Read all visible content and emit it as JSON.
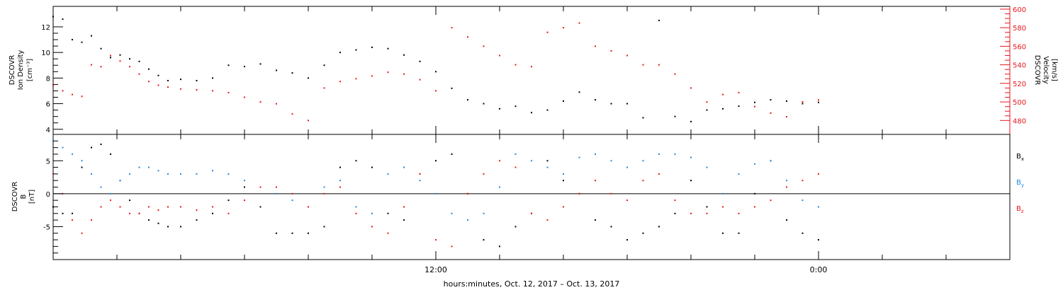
{
  "chart_data": [
    {
      "type": "scatter",
      "panel": "top",
      "ylabel_left": [
        "DSCOVR",
        "Ion Density",
        "[cm⁻³]"
      ],
      "ylabel_right": [
        "DSCOVR",
        "Velocity",
        "[km/s]"
      ],
      "yticks_left": [
        4,
        6,
        8,
        10,
        12
      ],
      "yticks_right": [
        480,
        500,
        520,
        540,
        560,
        580,
        600
      ],
      "ylim_left": [
        3.6,
        13.6
      ],
      "ylim_right": [
        465,
        603
      ],
      "series": [
        {
          "name": "Ion Density",
          "axis": "left",
          "color": "#000000",
          "x": [
            0,
            0.3,
            0.6,
            0.9,
            1.2,
            1.5,
            1.8,
            2.1,
            2.4,
            2.7,
            3.0,
            3.3,
            3.6,
            4.0,
            4.5,
            5.0,
            5.5,
            6.0,
            6.5,
            7.0,
            7.5,
            8.0,
            8.5,
            9.0,
            9.5,
            10.0,
            10.5,
            11.0,
            11.5,
            12.0,
            12.5,
            13.0,
            13.5,
            14.0,
            14.5,
            15.0,
            15.5,
            16.0,
            16.5,
            17.0,
            17.5,
            18.0,
            18.5,
            19.0,
            19.5,
            20.0,
            20.5,
            21.0,
            21.5,
            22.0,
            22.5,
            23.0,
            23.5,
            24.0
          ],
          "y": [
            12.8,
            12.6,
            11.0,
            10.8,
            11.3,
            10.3,
            9.6,
            9.8,
            9.5,
            9.3,
            8.7,
            8.2,
            7.8,
            7.9,
            7.8,
            8.0,
            9.0,
            8.9,
            9.1,
            8.6,
            8.4,
            8.0,
            9.0,
            10.0,
            10.2,
            10.4,
            10.3,
            9.8,
            9.3,
            8.5,
            7.2,
            6.3,
            6.0,
            5.6,
            5.8,
            5.3,
            5.5,
            6.2,
            6.9,
            6.3,
            6.0,
            6.0,
            4.9,
            12.5,
            5.0,
            4.6,
            5.5,
            5.6,
            5.8,
            6.1,
            6.3,
            6.2,
            6.0,
            6.1
          ]
        },
        {
          "name": "Velocity",
          "axis": "right",
          "color": "#e8161b",
          "x": [
            0,
            0.3,
            0.6,
            0.9,
            1.2,
            1.5,
            1.8,
            2.1,
            2.4,
            2.7,
            3.0,
            3.3,
            3.6,
            4.0,
            4.5,
            5.0,
            5.5,
            6.0,
            6.5,
            7.0,
            7.5,
            8.0,
            8.5,
            9.0,
            9.5,
            10.0,
            10.5,
            11.0,
            11.5,
            12.0,
            12.5,
            13.0,
            13.5,
            14.0,
            14.5,
            15.0,
            15.5,
            16.0,
            16.5,
            17.0,
            17.5,
            18.0,
            18.5,
            19.0,
            19.5,
            20.0,
            20.5,
            21.0,
            21.5,
            22.0,
            22.5,
            23.0,
            23.5,
            24.0
          ],
          "y": [
            518,
            512,
            508,
            506,
            540,
            538,
            550,
            544,
            538,
            530,
            522,
            518,
            516,
            514,
            513,
            512,
            510,
            505,
            500,
            498,
            487,
            480,
            515,
            522,
            525,
            528,
            532,
            530,
            524,
            512,
            580,
            570,
            560,
            550,
            540,
            538,
            575,
            580,
            585,
            560,
            555,
            550,
            540,
            540,
            530,
            515,
            500,
            508,
            510,
            495,
            488,
            484,
            500,
            502
          ]
        }
      ]
    },
    {
      "type": "scatter",
      "panel": "bottom",
      "ylabel": [
        "DSCOVR",
        "B",
        "[nT]"
      ],
      "yticks": [
        -5,
        0,
        5
      ],
      "ylim": [
        -10,
        9
      ],
      "zero_line": true,
      "series": [
        {
          "name": "Bx",
          "label_main": "B",
          "label_sub": "x",
          "color": "#000000",
          "x": [
            0,
            0.3,
            0.6,
            0.9,
            1.2,
            1.5,
            1.8,
            2.1,
            2.4,
            2.7,
            3.0,
            3.3,
            3.6,
            4.0,
            4.5,
            5.0,
            5.5,
            6.0,
            6.5,
            7.0,
            7.5,
            8.0,
            8.5,
            9.0,
            9.5,
            10.0,
            10.5,
            11.0,
            11.5,
            12.0,
            12.5,
            13.0,
            13.5,
            14.0,
            14.5,
            15.0,
            15.5,
            16.0,
            16.5,
            17.0,
            17.5,
            18.0,
            18.5,
            19.0,
            19.5,
            20.0,
            20.5,
            21.0,
            21.5,
            22.0,
            22.5,
            23.0,
            23.5,
            24.0
          ],
          "y": [
            -2,
            -3,
            -3,
            4,
            7,
            7.5,
            6,
            2,
            -1,
            -3,
            -4,
            -4.5,
            -5,
            -5,
            -4,
            -3,
            -1,
            1,
            -2,
            -6,
            -6,
            -6,
            -5,
            4,
            5,
            4,
            -3,
            -4,
            3,
            5,
            6,
            0,
            -7,
            -8,
            -5,
            -3,
            5,
            2,
            0,
            -4,
            -5,
            -7,
            -6,
            -5,
            -3,
            2,
            -2,
            -6,
            -6,
            0,
            5,
            -4,
            -6,
            -7
          ]
        },
        {
          "name": "By",
          "label_main": "B",
          "label_sub": "y",
          "color": "#1e88e5",
          "x": [
            0,
            0.3,
            0.6,
            0.9,
            1.2,
            1.5,
            1.8,
            2.1,
            2.4,
            2.7,
            3.0,
            3.3,
            3.6,
            4.0,
            4.5,
            5.0,
            5.5,
            6.0,
            6.5,
            7.0,
            7.5,
            8.0,
            8.5,
            9.0,
            9.5,
            10.0,
            10.5,
            11.0,
            11.5,
            12.0,
            12.5,
            13.0,
            13.5,
            14.0,
            14.5,
            15.0,
            15.5,
            16.0,
            16.5,
            17.0,
            17.5,
            18.0,
            18.5,
            19.0,
            19.5,
            20.0,
            20.5,
            21.0,
            21.5,
            22.0,
            22.5,
            23.0,
            23.5,
            24.0
          ],
          "y": [
            8,
            7,
            6,
            5,
            3,
            1,
            0,
            2,
            3,
            4,
            4,
            3.5,
            3,
            3,
            3,
            3.5,
            3,
            2,
            1,
            0,
            -1,
            -2,
            1,
            2,
            -2,
            -3,
            3,
            4,
            2,
            0,
            -3,
            -4,
            -3,
            1,
            6,
            5,
            4,
            3,
            5.5,
            6,
            5,
            4,
            5,
            6,
            6,
            5.5,
            4,
            0,
            3,
            4.5,
            5,
            2,
            -1,
            -2
          ]
        },
        {
          "name": "Bz",
          "label_main": "B",
          "label_sub": "z",
          "color": "#e8161b",
          "x": [
            0,
            0.3,
            0.6,
            0.9,
            1.2,
            1.5,
            1.8,
            2.1,
            2.4,
            2.7,
            3.0,
            3.3,
            3.6,
            4.0,
            4.5,
            5.0,
            5.5,
            6.0,
            6.5,
            7.0,
            7.5,
            8.0,
            8.5,
            9.0,
            9.5,
            10.0,
            10.5,
            11.0,
            11.5,
            12.0,
            12.5,
            13.0,
            13.5,
            14.0,
            14.5,
            15.0,
            15.5,
            16.0,
            16.5,
            17.0,
            17.5,
            18.0,
            18.5,
            19.0,
            19.5,
            20.0,
            20.5,
            21.0,
            21.5,
            22.0,
            22.5,
            23.0,
            23.5,
            24.0
          ],
          "y": [
            3,
            0,
            -4,
            -6,
            -4,
            -2,
            -1,
            -2,
            -3,
            -3,
            -2,
            -2.5,
            -2,
            -2,
            -2.5,
            -2,
            -3,
            -1,
            1,
            1,
            0,
            -2,
            0,
            1,
            -3,
            -5,
            -6,
            -2,
            3,
            -7,
            -8,
            0,
            3,
            5,
            4,
            -3,
            -4,
            -2,
            0,
            2,
            0,
            -1,
            2,
            3,
            -1,
            -3,
            -3,
            -2,
            -3,
            -2,
            -1,
            1,
            2,
            3
          ]
        }
      ]
    }
  ],
  "xaxis": {
    "range_hours": [
      0,
      30
    ],
    "tick_labels": [
      {
        "hour": 12,
        "text": "12:00"
      },
      {
        "hour": 24,
        "text": "0:00"
      }
    ],
    "minor_tick_every_hours": 2,
    "title": "hours:minutes, Oct. 12, 2017 – Oct. 13, 2017"
  }
}
